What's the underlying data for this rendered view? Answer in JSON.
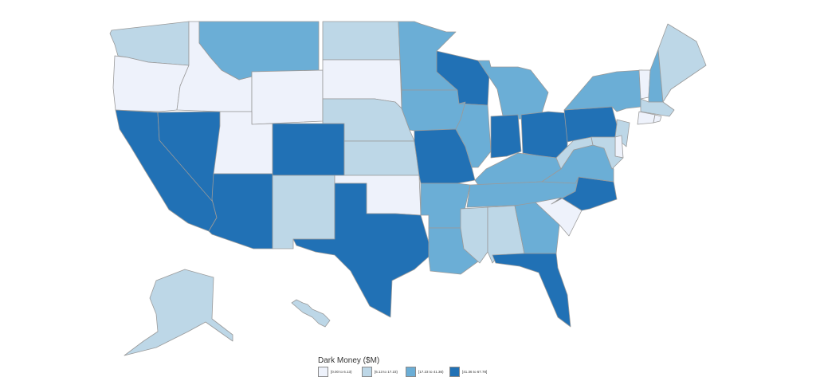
{
  "legend": {
    "title": "Dark Money ($M)",
    "bins": [
      {
        "label": "[0.00 to 6.13)",
        "color": "#eef2fb"
      },
      {
        "label": "[6.13 to 17.23)",
        "color": "#bdd7e7"
      },
      {
        "label": "[17.23 to 41.36)",
        "color": "#6baed6"
      },
      {
        "label": "[41.36 to 67.78]",
        "color": "#2171b5"
      }
    ]
  },
  "states": {
    "WA": 1,
    "OR": 0,
    "ID": 0,
    "MT": 2,
    "WY": 0,
    "ND": 1,
    "SD": 0,
    "NE": 1,
    "KS": 1,
    "OK": 0,
    "TX": 3,
    "NM": 1,
    "AZ": 3,
    "NV": 3,
    "UT": 0,
    "CO": 3,
    "CA": 3,
    "MN": 2,
    "IA": 2,
    "MO": 3,
    "AR": 2,
    "LA": 2,
    "WI": 3,
    "IL": 2,
    "MI": 2,
    "IN": 3,
    "OH": 3,
    "KY": 2,
    "TN": 2,
    "MS": 1,
    "AL": 1,
    "GA": 2,
    "FL": 3,
    "SC": 0,
    "NC": 3,
    "VA": 2,
    "WV": 1,
    "PA": 3,
    "NY": 2,
    "VT": 0,
    "NH": 2,
    "ME": 1,
    "MA": 1,
    "CT": 0,
    "RI": 0,
    "NJ": 1,
    "DE": 0,
    "MD": 1,
    "AK": 1,
    "HI": 1
  }
}
